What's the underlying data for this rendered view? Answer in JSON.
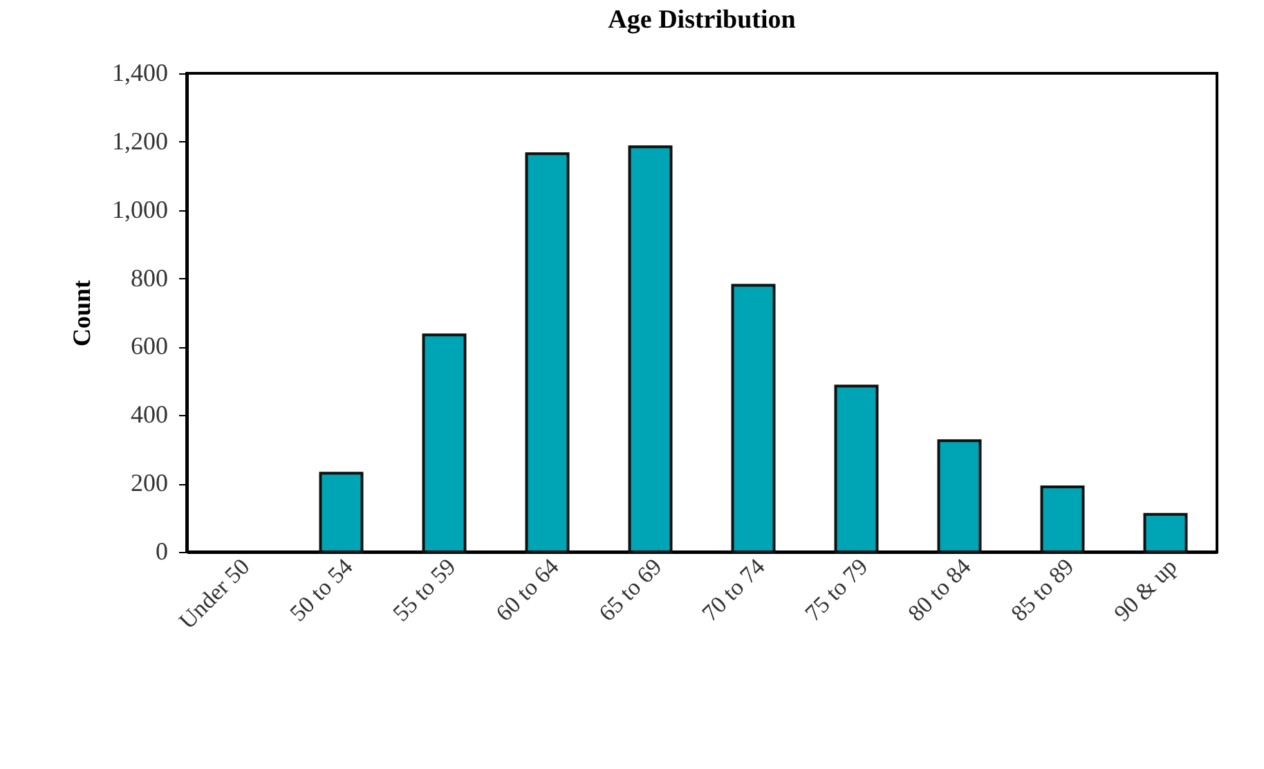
{
  "chart_data": {
    "type": "bar",
    "title": "Age Distribution",
    "ylabel": "Count",
    "categories": [
      "Under 50",
      "50 to 54",
      "55 to 59",
      "60 to 64",
      "65 to 69",
      "70 to 74",
      "75 to 79",
      "80 to 84",
      "85 to 89",
      "90 & up"
    ],
    "values": [
      0,
      230,
      635,
      1165,
      1185,
      780,
      485,
      325,
      190,
      110
    ],
    "color": "#00a5b5",
    "ylim": [
      0,
      1400
    ],
    "yticks": [
      {
        "value": 0,
        "label": "0"
      },
      {
        "value": 200,
        "label": "200"
      },
      {
        "value": 400,
        "label": "400"
      },
      {
        "value": 600,
        "label": "600"
      },
      {
        "value": 800,
        "label": "800"
      },
      {
        "value": 1000,
        "label": "1,000"
      },
      {
        "value": 1200,
        "label": "1,200"
      },
      {
        "value": 1400,
        "label": "1,400"
      }
    ],
    "grid": false
  }
}
